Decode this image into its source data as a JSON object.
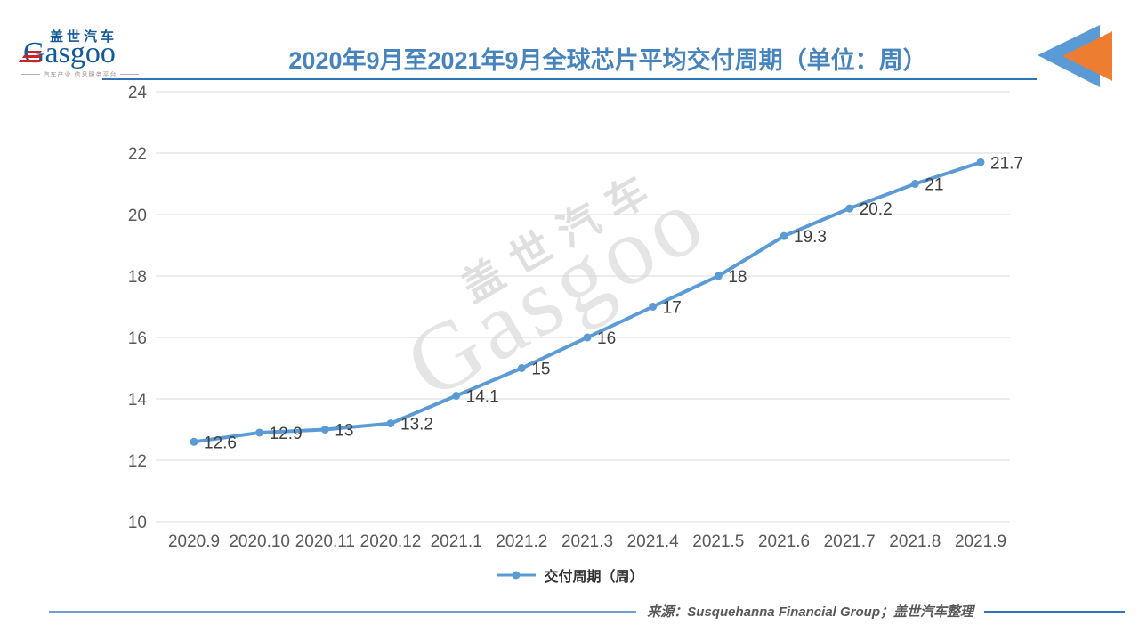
{
  "header": {
    "logo": {
      "cn": "盖世汽车",
      "en": "Gasgoo",
      "tagline": "汽车产业 信息服务平台"
    },
    "title": "2020年9月至2021年9月全球芯片平均交付周期（单位：周）"
  },
  "chart_data": {
    "type": "line",
    "title": "2020年9月至2021年9月全球芯片平均交付周期（单位：周）",
    "categories": [
      "2020.9",
      "2020.10",
      "2020.11",
      "2020.12",
      "2021.1",
      "2021.2",
      "2021.3",
      "2021.4",
      "2021.5",
      "2021.6",
      "2021.7",
      "2021.8",
      "2021.9"
    ],
    "series": [
      {
        "name": "交付周期（周）",
        "values": [
          12.6,
          12.9,
          13,
          13.2,
          14.1,
          15,
          16,
          17,
          18,
          19.3,
          20.2,
          21,
          21.7
        ]
      }
    ],
    "xlabel": "",
    "ylabel": "",
    "ylim": [
      10,
      24
    ],
    "ytick_step": 2,
    "grid": "horizontal",
    "legend_position": "bottom",
    "line_color": "#5B9BD5",
    "data_labels_shown": true
  },
  "watermark": {
    "cn": "盖世汽车",
    "en": "Gasgoo"
  },
  "footer": {
    "source": "来源：Susquehanna Financial Group；盖世汽车整理"
  },
  "colors": {
    "accent_blue": "#5B9BD5",
    "title_blue": "#4784BC",
    "underline_blue": "#2E75B6",
    "orange": "#ED7D31",
    "axis_gray": "#595959",
    "grid_gray": "#D9D9D9",
    "label_gray": "#404040",
    "logo_red": "#C9252B",
    "logo_blue": "#155A96"
  }
}
